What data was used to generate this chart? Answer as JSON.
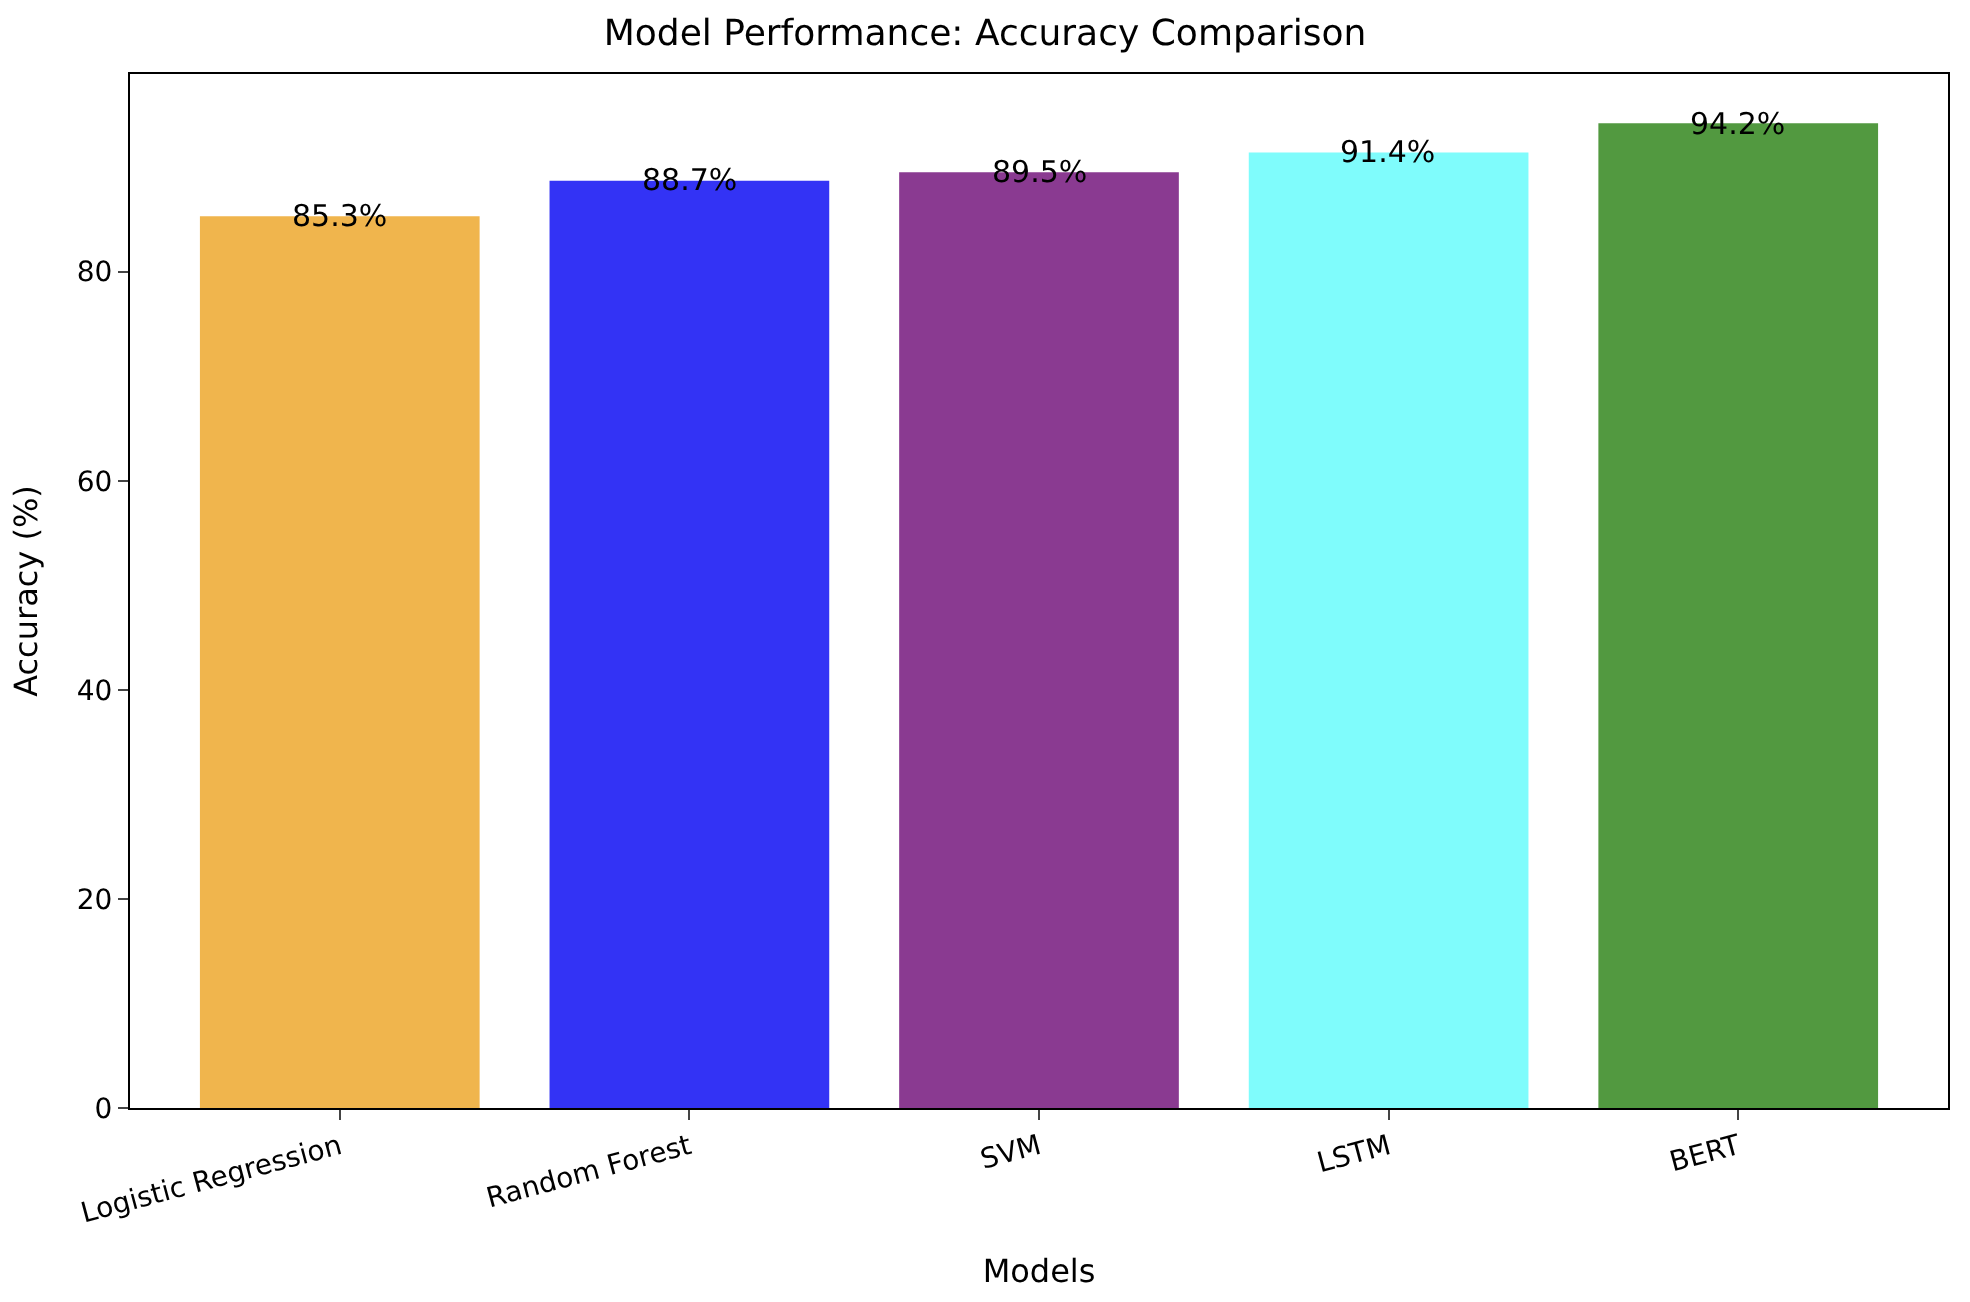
{
  "chart_data": {
    "type": "bar",
    "title": "Model Performance: Accuracy Comparison",
    "xlabel": "Models",
    "ylabel": "Accuracy (%)",
    "categories": [
      "Logistic Regression",
      "Random Forest",
      "SVM",
      "LSTM",
      "BERT"
    ],
    "values": [
      85.3,
      88.7,
      89.5,
      91.4,
      94.2
    ],
    "colors": [
      "#f0b54d",
      "#3333f5",
      "#8a3a91",
      "#7ffcfc",
      "#529940"
    ],
    "value_labels": [
      "85.3%",
      "88.7%",
      "89.5%",
      "91.4%",
      "94.2%"
    ],
    "ylim": [
      0,
      98.9
    ],
    "yticks": [
      0,
      20,
      40,
      60,
      80
    ]
  }
}
